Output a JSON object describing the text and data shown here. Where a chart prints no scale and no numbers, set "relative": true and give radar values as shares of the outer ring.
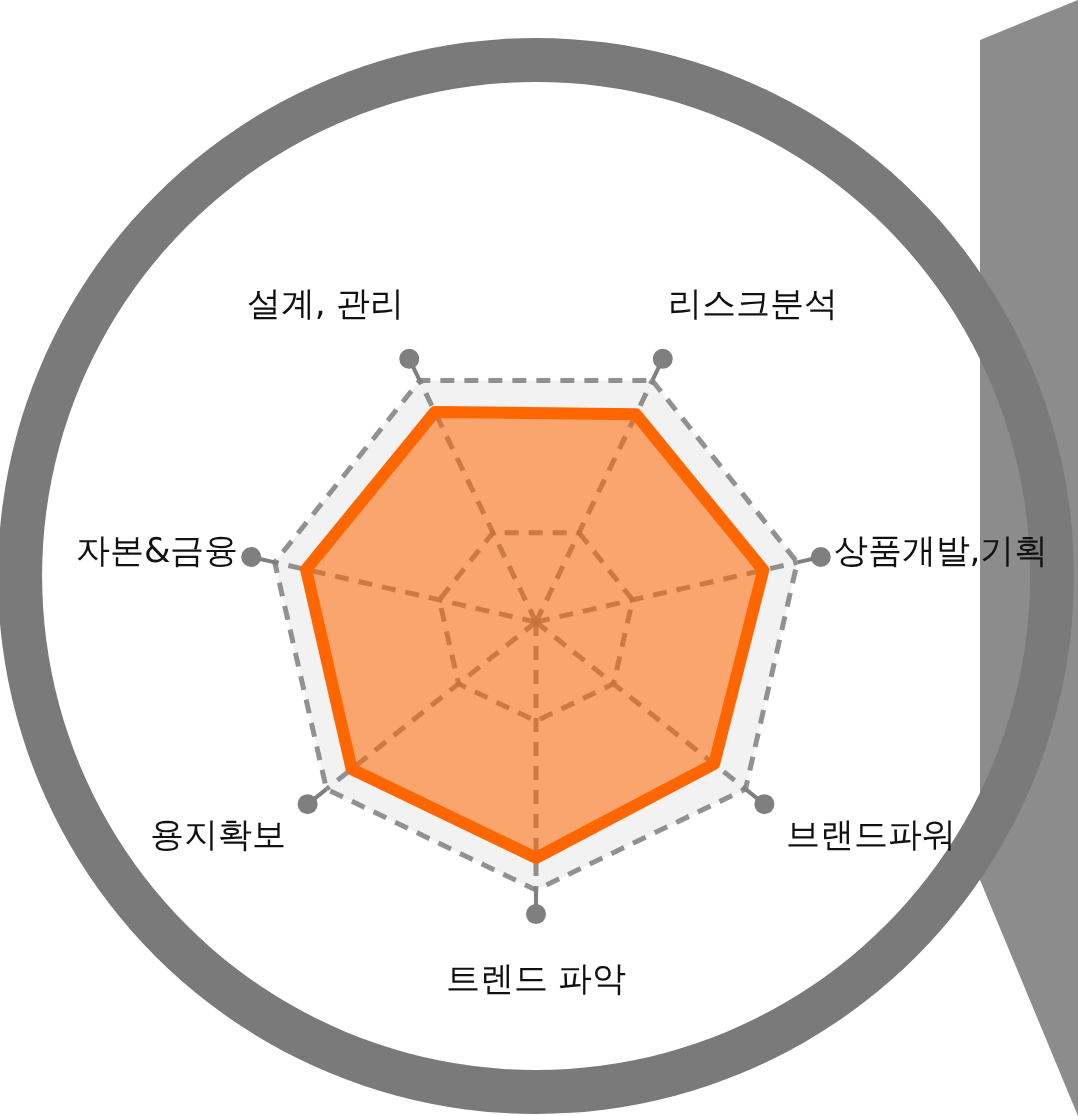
{
  "chart_data": {
    "type": "radar",
    "relative": true,
    "categories": [
      "리스크분석",
      "상품개발,기획",
      "브랜드파워",
      "트렌드 파악",
      "용지확보",
      "자본&금융",
      "설계, 관리"
    ],
    "series": [
      {
        "color": "#ff6600",
        "values": [
          0.86,
          0.87,
          0.85,
          0.88,
          0.88,
          0.88,
          0.87
        ]
      }
    ]
  }
}
